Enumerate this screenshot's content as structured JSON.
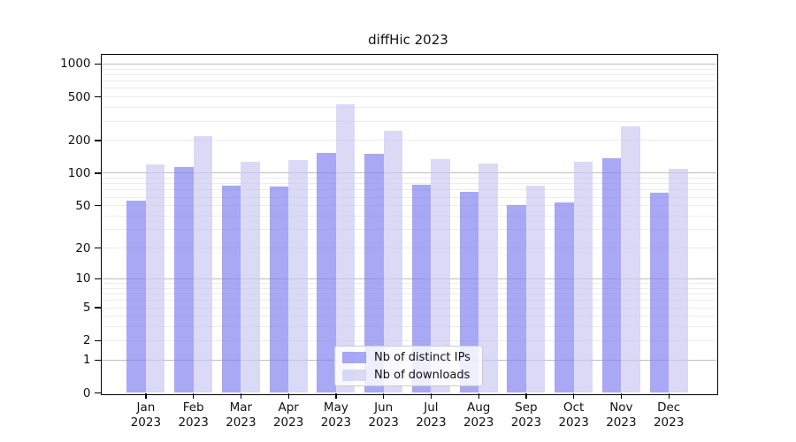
{
  "title": "diffHic 2023",
  "colors": {
    "ips_bar": "rgba(131,131,240,0.7)",
    "downloads_bar": "rgba(202,202,242,0.7)",
    "grid_minor": "#ececec",
    "grid_major": "#bdbdbd",
    "axis": "#000000",
    "legend_border": "#cccccc"
  },
  "chart_data": {
    "type": "bar",
    "title": "diffHic 2023",
    "categories": [
      "Jan",
      "Feb",
      "Mar",
      "Apr",
      "May",
      "Jun",
      "Jul",
      "Aug",
      "Sep",
      "Oct",
      "Nov",
      "Dec"
    ],
    "category_year": "2023",
    "series": [
      {
        "name": "Nb of distinct IPs",
        "values": [
          56,
          115,
          77,
          76,
          155,
          150,
          78,
          67,
          51,
          54,
          138,
          66
        ]
      },
      {
        "name": "Nb of downloads",
        "values": [
          120,
          220,
          128,
          133,
          430,
          245,
          135,
          123,
          77,
          128,
          268,
          109
        ]
      }
    ],
    "xlabel": "",
    "ylabel": "",
    "y_scale": "log10(value+1)",
    "y_ticks": [
      0,
      1,
      2,
      5,
      10,
      20,
      50,
      100,
      200,
      500,
      1000
    ],
    "y_minor_gridlines": [
      2,
      3,
      4,
      5,
      6,
      7,
      8,
      9,
      20,
      30,
      40,
      50,
      60,
      70,
      80,
      90,
      200,
      300,
      400,
      500,
      600,
      700,
      800,
      900
    ],
    "y_major_gridlines": [
      1,
      10,
      100,
      1000
    ],
    "ylim": [
      0,
      1250
    ],
    "grid": "horizontal",
    "legend_position": "inside-bottom-center"
  }
}
